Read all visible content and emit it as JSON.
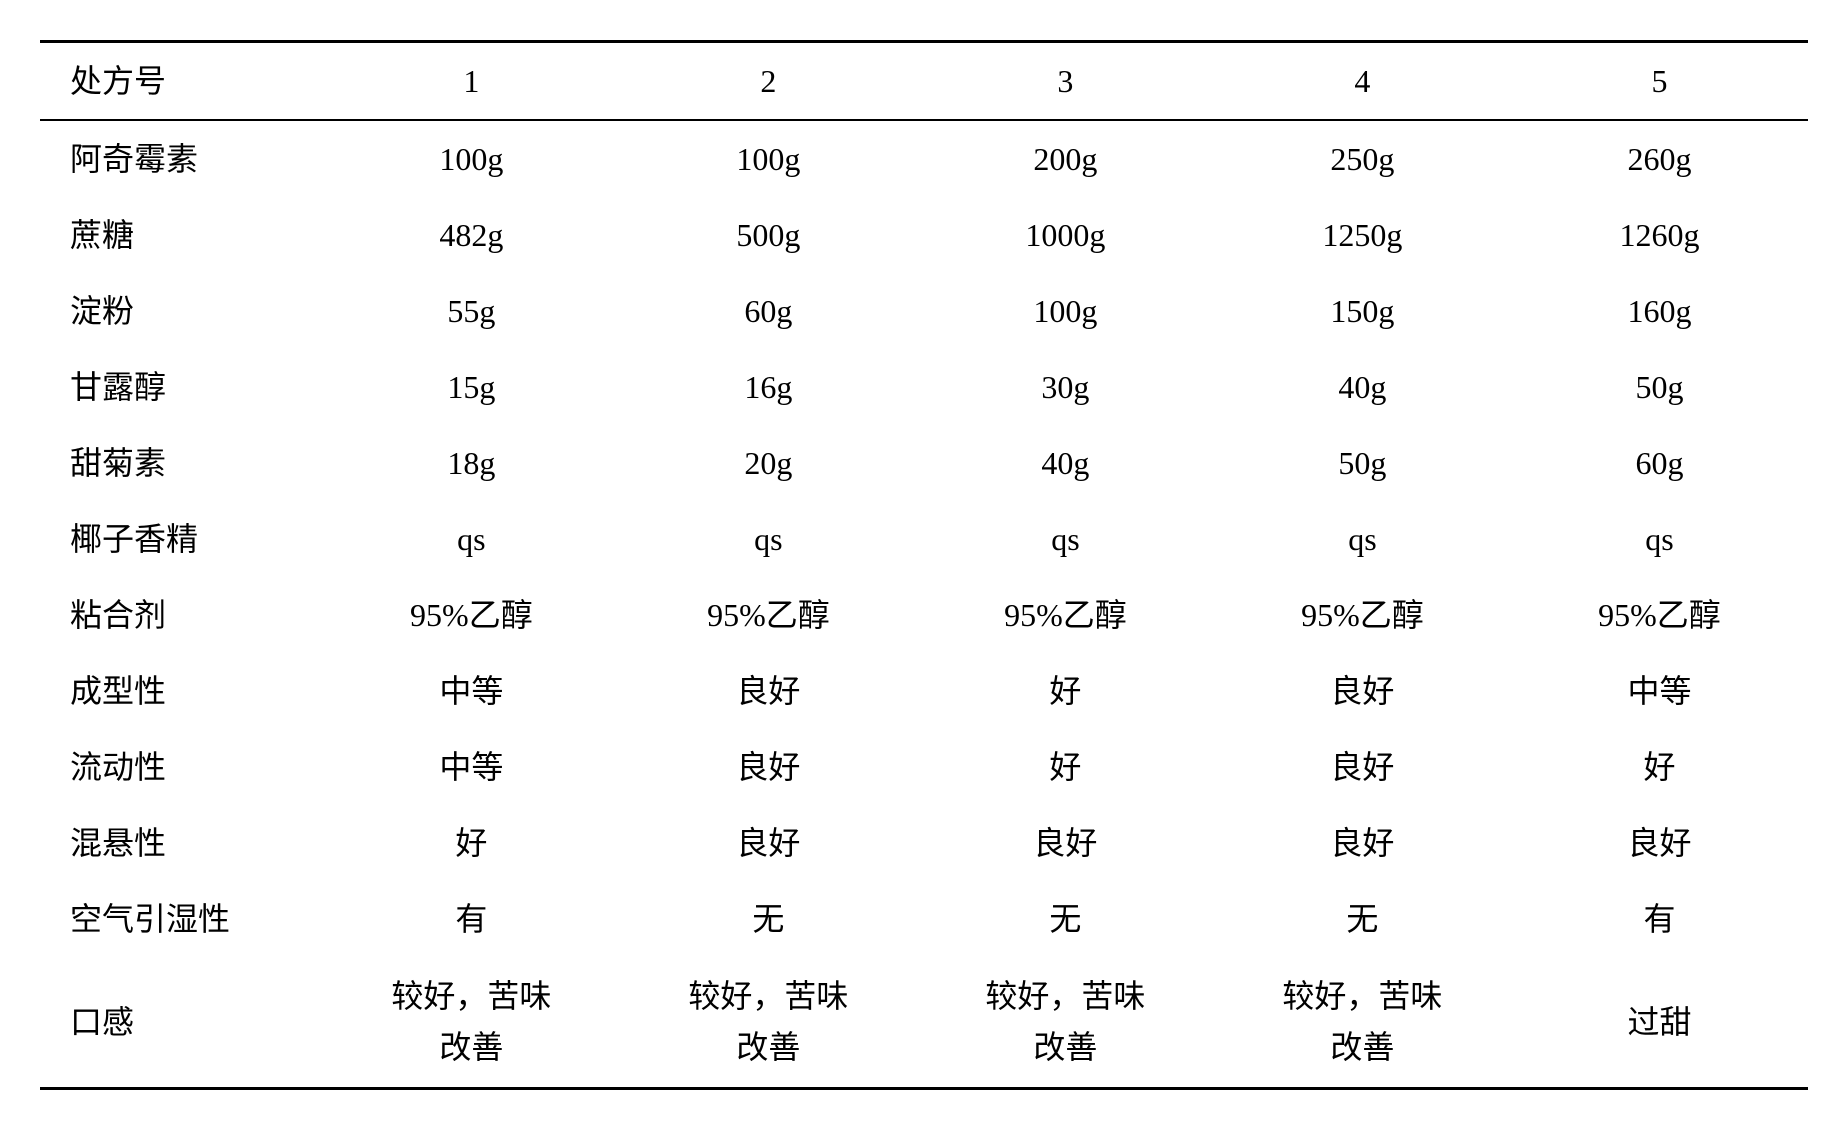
{
  "table": {
    "type": "table",
    "background_color": "#ffffff",
    "text_color": "#000000",
    "border_color": "#000000",
    "header_border_top_width": 3,
    "header_border_bottom_width": 2,
    "footer_border_width": 3,
    "font_family": "SimSun",
    "font_size": 32,
    "cell_padding_v": 14,
    "cell_padding_h": 10,
    "first_col_align": "left",
    "other_col_align": "center",
    "columns": [
      "处方号",
      "1",
      "2",
      "3",
      "4",
      "5"
    ],
    "rows": [
      {
        "label": "阿奇霉素",
        "values": [
          "100g",
          "100g",
          "200g",
          "250g",
          "260g"
        ]
      },
      {
        "label": "蔗糖",
        "values": [
          "482g",
          "500g",
          "1000g",
          "1250g",
          "1260g"
        ]
      },
      {
        "label": "淀粉",
        "values": [
          "55g",
          "60g",
          "100g",
          "150g",
          "160g"
        ]
      },
      {
        "label": "甘露醇",
        "values": [
          "15g",
          "16g",
          "30g",
          "40g",
          "50g"
        ]
      },
      {
        "label": "甜菊素",
        "values": [
          "18g",
          "20g",
          "40g",
          "50g",
          "60g"
        ]
      },
      {
        "label": "椰子香精",
        "values": [
          "qs",
          "qs",
          "qs",
          "qs",
          "qs"
        ]
      },
      {
        "label": "粘合剂",
        "values": [
          "95%乙醇",
          "95%乙醇",
          "95%乙醇",
          "95%乙醇",
          "95%乙醇"
        ]
      },
      {
        "label": "成型性",
        "values": [
          "中等",
          "良好",
          "好",
          "良好",
          "中等"
        ]
      },
      {
        "label": "流动性",
        "values": [
          "中等",
          "良好",
          "好",
          "良好",
          "好"
        ]
      },
      {
        "label": "混悬性",
        "values": [
          "好",
          "良好",
          "良好",
          "良好",
          "良好"
        ]
      },
      {
        "label": "空气引湿性",
        "values": [
          "有",
          "无",
          "无",
          "无",
          "有"
        ]
      },
      {
        "label": "口感",
        "values": [
          "较好，苦味\n改善",
          "较好，苦味\n改善",
          "较好，苦味\n改善",
          "较好，苦味\n改善",
          "过甜"
        ]
      }
    ]
  }
}
